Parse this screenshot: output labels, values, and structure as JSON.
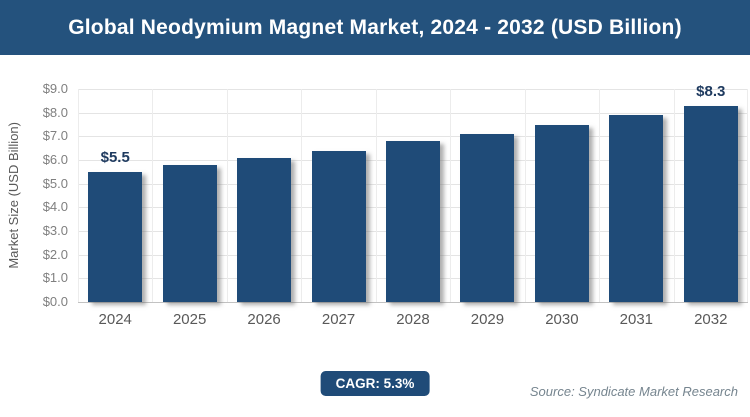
{
  "header": {
    "title": "Global Neodymium Magnet Market, 2024 - 2032 (USD Billion)"
  },
  "chart_data": {
    "type": "bar",
    "title": "Global Neodymium Magnet Market, 2024 - 2032 (USD Billion)",
    "categories": [
      "2024",
      "2025",
      "2026",
      "2027",
      "2028",
      "2029",
      "2030",
      "2031",
      "2032"
    ],
    "values": [
      5.5,
      5.8,
      6.1,
      6.4,
      6.8,
      7.1,
      7.5,
      7.9,
      8.3
    ],
    "point_labels": [
      "$5.5",
      "",
      "",
      "",
      "",
      "",
      "",
      "",
      "$8.3"
    ],
    "xlabel": "",
    "ylabel": "Market Size (USD Billion)",
    "ylim": [
      0,
      9
    ],
    "y_ticks": [
      "$9.0",
      "$8.0",
      "$7.0",
      "$6.0",
      "$5.0",
      "$4.0",
      "$3.0",
      "$2.0",
      "$1.0",
      "$0.0"
    ],
    "grid": true,
    "legend": "none",
    "bar_color": "#1F4B78"
  },
  "footer": {
    "cagr": "CAGR: 5.3%",
    "source": "Source: Syndicate Market Research"
  },
  "colors": {
    "header_bg": "#24527D",
    "bar": "#1F4B78",
    "badge_bg": "#1F4B78",
    "grid": "#E4E4E4",
    "axis": "#C2C2C2",
    "y_tick_text": "#7F7F7F",
    "x_tick_text": "#595959",
    "point_label_text": "#1E3A5F",
    "source_text": "#76858F",
    "title_text": "#FFFFFF"
  }
}
